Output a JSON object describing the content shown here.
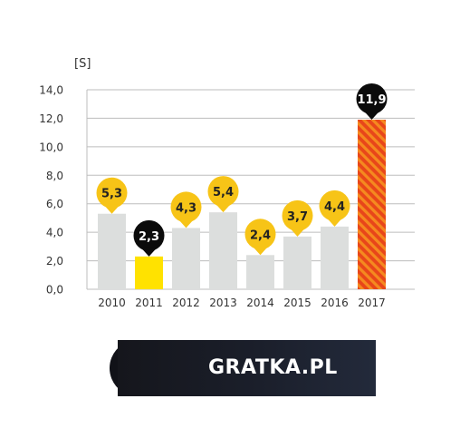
{
  "chart_data": {
    "type": "bar",
    "unit_label": "[S]",
    "categories": [
      "2010",
      "2011",
      "2012",
      "2013",
      "2014",
      "2015",
      "2016",
      "2017"
    ],
    "values": [
      5.3,
      2.3,
      4.3,
      5.4,
      2.4,
      3.7,
      4.4,
      11.9
    ],
    "value_labels": [
      "5,3",
      "2,3",
      "4,3",
      "5,4",
      "2,4",
      "3,7",
      "4,4",
      "11,9"
    ],
    "ytick_labels": [
      "0,0",
      "2,0",
      "4,0",
      "6,0",
      "8,0",
      "10,0",
      "12,0",
      "14,0"
    ],
    "ylim": [
      0,
      14
    ],
    "grid": true,
    "colors": {
      "bar_default": "#dcdedd",
      "bar_2011": "#ffe200",
      "bar_2017": "#e8461a",
      "bar_2017_stripe": "#f58a1f",
      "pin_yellow": "#f7c417",
      "pin_black": "#0b0b0b",
      "pin_text_dark": "#222222",
      "pin_text_light": "#ffffff"
    },
    "highlights": {
      "2011": {
        "bar": "bar_2011",
        "pin": "pin_black",
        "text": "pin_text_light"
      },
      "2017": {
        "bar": "bar_2017",
        "pin": "pin_black",
        "text": "pin_text_light"
      }
    }
  },
  "brand": {
    "name": "GRATKA.PL",
    "logo_icon": "gratka-g-icon"
  }
}
